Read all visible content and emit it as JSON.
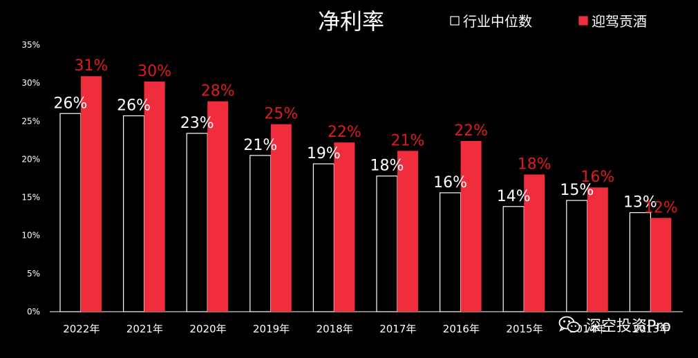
{
  "chart_data": {
    "type": "bar",
    "title": "净利率",
    "categories": [
      "2022年",
      "2021年",
      "2020年",
      "2019年",
      "2018年",
      "2017年",
      "2016年",
      "2015年",
      "2014年",
      "2013年"
    ],
    "series": [
      {
        "name": "行业中位数",
        "values": [
          26,
          25.7,
          23.4,
          20.5,
          19.4,
          17.8,
          15.6,
          13.8,
          14.6,
          13
        ],
        "labels": [
          "26%",
          "26%",
          "23%",
          "21%",
          "19%",
          "18%",
          "16%",
          "14%",
          "15%",
          "13%"
        ],
        "color": "#000000",
        "stroke": "#ffffff",
        "label_color": "#ffffff"
      },
      {
        "name": "迎驾贡酒",
        "values": [
          30.9,
          30.2,
          27.6,
          24.6,
          22.2,
          21.1,
          22.4,
          18,
          16.3,
          12.3
        ],
        "labels": [
          "31%",
          "30%",
          "28%",
          "25%",
          "22%",
          "21%",
          "22%",
          "18%",
          "16%",
          "12%"
        ],
        "color": "#ef2d3d",
        "stroke": "#ef2d3d",
        "label_color": "#e01b1b"
      }
    ],
    "ylim": [
      0,
      35
    ],
    "yticks": [
      0,
      5,
      10,
      15,
      20,
      25,
      30,
      35
    ],
    "ytick_labels": [
      "0%",
      "5%",
      "10%",
      "15%",
      "20%",
      "25%",
      "30%",
      "35%"
    ],
    "xlabel": "",
    "ylabel": "",
    "grid": false,
    "legend_position": "top-right"
  },
  "watermark": {
    "text": "深空投资Pro",
    "icon": "wechat-icon"
  },
  "colors": {
    "background": "#000000",
    "axis": "#ffffff",
    "text": "#ffffff"
  }
}
